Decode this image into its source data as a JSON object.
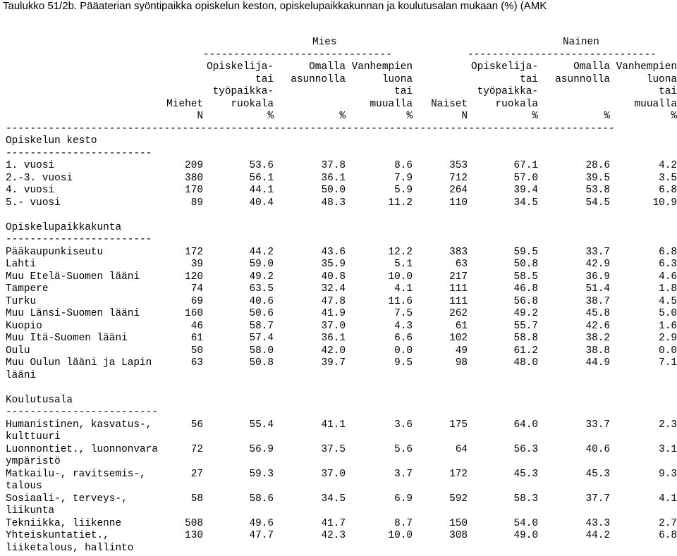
{
  "title": "Taulukko 51/2b. Pääaterian syöntipaikka opiskelun keston, opiskelupaikkakunnan ja koulutusalan mukaan (%) (AMK",
  "header": {
    "group_male": "Mies",
    "group_female": "Nainen",
    "col_men": "Miehet",
    "col_women": "Naiset",
    "opiskelija_1": "Opiskelija-",
    "opiskelija_2": "tai",
    "opiskelija_3": "työpaikka-",
    "opiskelija_4": "ruokala",
    "omalla_1": "Omalla",
    "omalla_2": "asunnolla",
    "vanhempien_1": "Vanhempien",
    "vanhempien_2": "luona",
    "vanhempien_3": "tai",
    "vanhempien_4": "muualla",
    "unit_n": "N",
    "unit_pct": "%",
    "dash_group": "-------------------------------",
    "dash_full": "----------------------------------------------------------------------------------------------------"
  },
  "sections": [
    {
      "title": "Opiskelun kesto",
      "underline": "------------------------",
      "rows": [
        {
          "label": [
            "1. vuosi"
          ],
          "values": [
            "209",
            "53.6",
            "37.8",
            "8.6",
            "353",
            "67.1",
            "28.6",
            "4.2"
          ]
        },
        {
          "label": [
            "2.-3. vuosi"
          ],
          "values": [
            "380",
            "56.1",
            "36.1",
            "7.9",
            "712",
            "57.0",
            "39.5",
            "3.5"
          ]
        },
        {
          "label": [
            "4. vuosi"
          ],
          "values": [
            "170",
            "44.1",
            "50.0",
            "5.9",
            "264",
            "39.4",
            "53.8",
            "6.8"
          ]
        },
        {
          "label": [
            "5.- vuosi"
          ],
          "values": [
            "89",
            "40.4",
            "48.3",
            "11.2",
            "110",
            "34.5",
            "54.5",
            "10.9"
          ]
        }
      ]
    },
    {
      "title": "Opiskelupaikkakunta",
      "underline": "------------------------",
      "rows": [
        {
          "label": [
            "Pääkaupunkiseutu"
          ],
          "values": [
            "172",
            "44.2",
            "43.6",
            "12.2",
            "383",
            "59.5",
            "33.7",
            "6.8"
          ]
        },
        {
          "label": [
            "Lahti"
          ],
          "values": [
            "39",
            "59.0",
            "35.9",
            "5.1",
            "63",
            "50.8",
            "42.9",
            "6.3"
          ]
        },
        {
          "label": [
            "Muu Etelä-Suomen lääni"
          ],
          "values": [
            "120",
            "49.2",
            "40.8",
            "10.0",
            "217",
            "58.5",
            "36.9",
            "4.6"
          ]
        },
        {
          "label": [
            "Tampere"
          ],
          "values": [
            "74",
            "63.5",
            "32.4",
            "4.1",
            "111",
            "46.8",
            "51.4",
            "1.8"
          ]
        },
        {
          "label": [
            "Turku"
          ],
          "values": [
            "69",
            "40.6",
            "47.8",
            "11.6",
            "111",
            "56.8",
            "38.7",
            "4.5"
          ]
        },
        {
          "label": [
            "Muu Länsi-Suomen lääni"
          ],
          "values": [
            "160",
            "50.6",
            "41.9",
            "7.5",
            "262",
            "49.2",
            "45.8",
            "5.0"
          ]
        },
        {
          "label": [
            "Kuopio"
          ],
          "values": [
            "46",
            "58.7",
            "37.0",
            "4.3",
            "61",
            "55.7",
            "42.6",
            "1.6"
          ]
        },
        {
          "label": [
            "Muu Itä-Suomen lääni"
          ],
          "values": [
            "61",
            "57.4",
            "36.1",
            "6.6",
            "102",
            "58.8",
            "38.2",
            "2.9"
          ]
        },
        {
          "label": [
            "Oulu"
          ],
          "values": [
            "50",
            "58.0",
            "42.0",
            "0.0",
            "49",
            "61.2",
            "38.8",
            "0.0"
          ]
        },
        {
          "label": [
            "Muu Oulun lääni ja Lapin",
            "lääni"
          ],
          "values": [
            "63",
            "50.8",
            "39.7",
            "9.5",
            "98",
            "48.0",
            "44.9",
            "7.1"
          ]
        }
      ]
    },
    {
      "title": "Koulutusala",
      "underline": "-------------------------",
      "rows": [
        {
          "label": [
            "Humanistinen, kasvatus-,",
            "kulttuuri"
          ],
          "values": [
            "56",
            "55.4",
            "41.1",
            "3.6",
            "175",
            "64.0",
            "33.7",
            "2.3"
          ]
        },
        {
          "label": [
            "Luonnontiet., luonnonvara",
            "ympäristö"
          ],
          "values": [
            "72",
            "56.9",
            "37.5",
            "5.6",
            "64",
            "56.3",
            "40.6",
            "3.1"
          ]
        },
        {
          "label": [
            "Matkailu-, ravitsemis-,",
            "talous"
          ],
          "values": [
            "27",
            "59.3",
            "37.0",
            "3.7",
            "172",
            "45.3",
            "45.3",
            "9.3"
          ]
        },
        {
          "label": [
            "Sosiaali-, terveys-,",
            "liikunta"
          ],
          "values": [
            "58",
            "58.6",
            "34.5",
            "6.9",
            "592",
            "58.3",
            "37.7",
            "4.1"
          ]
        },
        {
          "label": [
            "Tekniikka, liikenne"
          ],
          "values": [
            "508",
            "49.6",
            "41.7",
            "8.7",
            "150",
            "54.0",
            "43.3",
            "2.7"
          ]
        },
        {
          "label": [
            "Yhteiskuntatiet.,",
            "liiketalous, hallinto"
          ],
          "values": [
            "130",
            "47.7",
            "42.3",
            "10.0",
            "308",
            "49.0",
            "44.2",
            "6.8"
          ]
        }
      ]
    }
  ]
}
